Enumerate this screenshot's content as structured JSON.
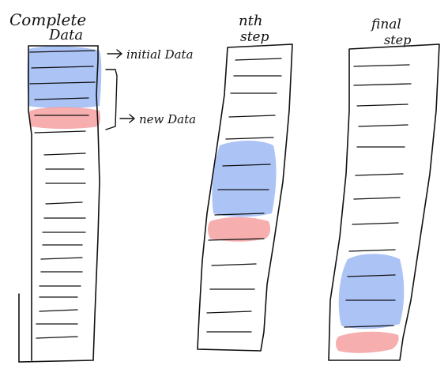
{
  "columns": {
    "complete": {
      "title_line1": "Complete",
      "title_line2": "Data"
    },
    "nth": {
      "title_line1": "nth",
      "title_line2": "step"
    },
    "final": {
      "title_line1": "final",
      "title_line2": "step"
    }
  },
  "annotations": {
    "initial": "initial Data",
    "new": "new Data"
  },
  "colors": {
    "initial_highlight": "#9db8f5",
    "new_highlight": "#f5a0a0",
    "ink": "#111111"
  }
}
